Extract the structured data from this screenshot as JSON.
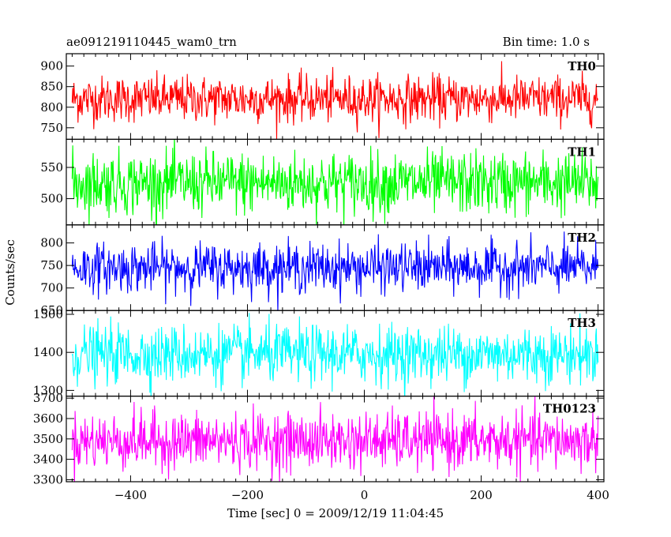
{
  "header": {
    "left_title": "ae091219110445_wam0_trn",
    "right_title": "Bin time: 1.0 s"
  },
  "axis": {
    "ylabel": "Counts/sec",
    "xlabel": "Time [sec] 0 = 2009/12/19 11:04:45"
  },
  "chart_data": {
    "type": "line",
    "xlim": [
      -510,
      410
    ],
    "x_start": -500,
    "x_end": 400,
    "x_step": 1,
    "x_ticks": [
      -400,
      -200,
      0,
      200,
      400
    ],
    "grid": false,
    "panels": [
      {
        "name": "TH0",
        "color": "#ff0000",
        "mean": 820,
        "sigma": 28,
        "ylim": [
          722,
          930
        ],
        "ticks": [
          750,
          800,
          850,
          900
        ]
      },
      {
        "name": "TH1",
        "color": "#00ff00",
        "mean": 525,
        "sigma": 25,
        "ylim": [
          458,
          595
        ],
        "ticks": [
          500,
          550
        ]
      },
      {
        "name": "TH2",
        "color": "#0000ff",
        "mean": 745,
        "sigma": 27,
        "ylim": [
          650,
          840
        ],
        "ticks": [
          650,
          700,
          750,
          800
        ]
      },
      {
        "name": "TH3",
        "color": "#00ffff",
        "mean": 1395,
        "sigma": 38,
        "ylim": [
          1285,
          1510
        ],
        "ticks": [
          1300,
          1400,
          1500
        ]
      },
      {
        "name": "TH0123",
        "color": "#ff00ff",
        "mean": 3490,
        "sigma": 70,
        "ylim": [
          3290,
          3710
        ],
        "ticks": [
          3300,
          3400,
          3500,
          3600,
          3700
        ]
      }
    ]
  }
}
